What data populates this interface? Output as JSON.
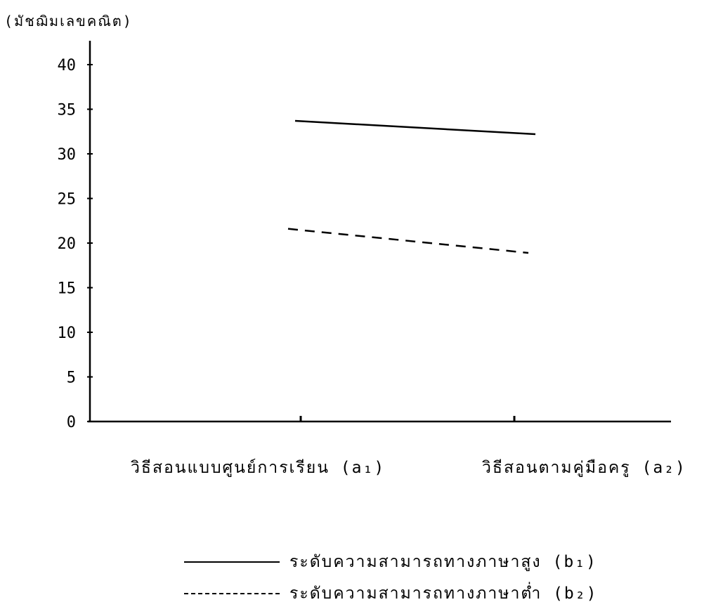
{
  "chart_data": {
    "type": "line",
    "ylabel": "(มัชฌิมเลขคณิต)",
    "ylim": [
      0,
      42
    ],
    "yticks": [
      "0",
      "5",
      "10",
      "15",
      "20",
      "25",
      "30",
      "35",
      "40"
    ],
    "categories": [
      "วิธีสอนแบบศูนย์การเรียน (a₁)",
      "วิธีสอนตามคู่มือครู (a₂)"
    ],
    "series": [
      {
        "name": "ระดับความสามารถทางภาษาสูง (b₁)",
        "style": "solid",
        "values": [
          33.7,
          32.2
        ]
      },
      {
        "name": "ระดับความสามารถทางภาษาต่ำ (b₂)",
        "style": "dashed",
        "values": [
          21.6,
          18.9
        ]
      }
    ],
    "grid": false,
    "legend_position": "bottom"
  }
}
